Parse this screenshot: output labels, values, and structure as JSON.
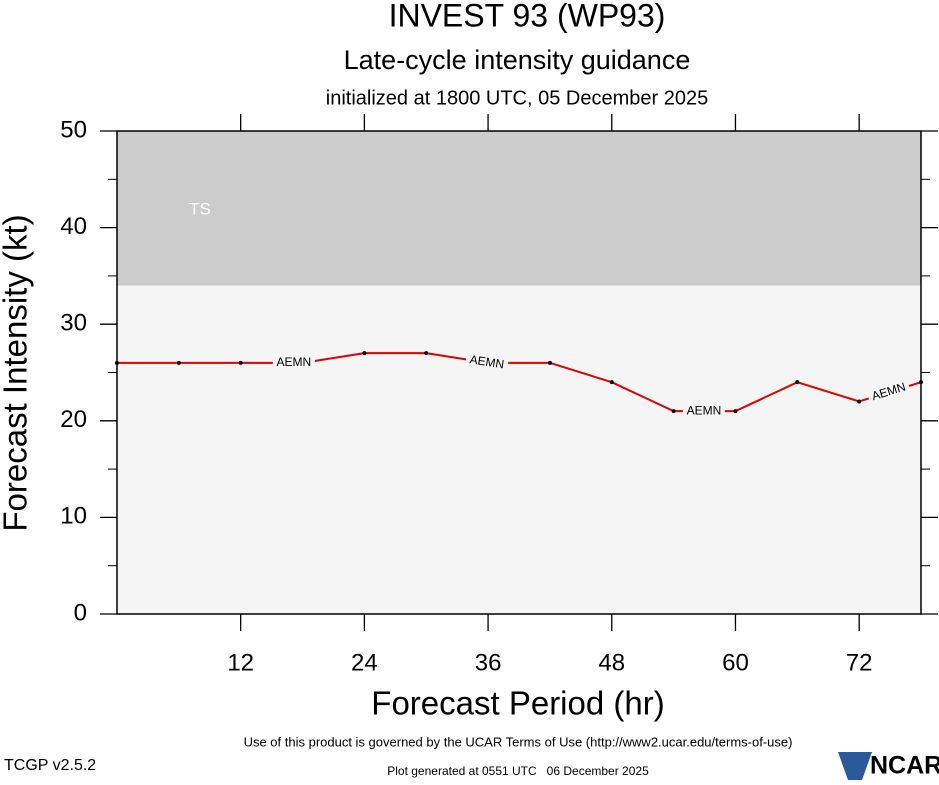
{
  "chart_data": {
    "type": "line",
    "title": "INVEST 93 (WP93)",
    "subtitle": "Late-cycle intensity guidance",
    "initialized": "initialized at 1800 UTC, 05 December 2025",
    "x_label": "Forecast Period (hr)",
    "y_label": "Forecast Intensity (kt)",
    "x": [
      0,
      6,
      12,
      18,
      24,
      30,
      36,
      42,
      48,
      54,
      60,
      66,
      72,
      78
    ],
    "series": [
      {
        "name": "AEMN",
        "color": "#e00000",
        "values": [
          26,
          26,
          26,
          26,
          27,
          27,
          26,
          26,
          24,
          21,
          21,
          24,
          22,
          24
        ]
      }
    ],
    "xlim": [
      0,
      78
    ],
    "xticks": [
      12,
      24,
      36,
      48,
      60,
      72
    ],
    "ylim": [
      0,
      50
    ],
    "yticks": [
      0,
      10,
      20,
      30,
      40,
      50
    ],
    "yminorticks": [
      5,
      15,
      25,
      35,
      45
    ],
    "band": {
      "label": "TS",
      "range": [
        34,
        50
      ],
      "color": "#cccccc"
    },
    "background": "#f5f5f5",
    "terms": "Use of this product is governed by the UCAR Terms of Use (http://www2.ucar.edu/terms-of-use)",
    "version": "TCGP v2.5.2",
    "generated": "Plot generated at 0551 UTC   06 December 2025",
    "logo": "NCAR"
  }
}
